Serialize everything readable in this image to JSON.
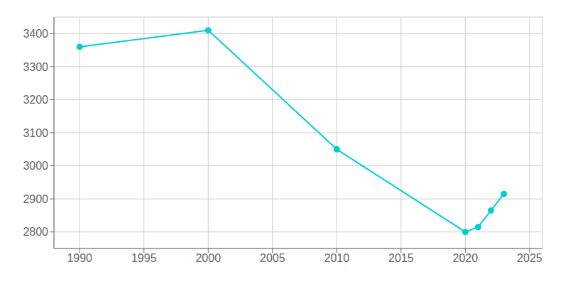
{
  "chart_data": {
    "type": "line",
    "x": [
      1990,
      2000,
      2010,
      2020,
      2021,
      2022,
      2023
    ],
    "values": [
      3360,
      3410,
      3050,
      2800,
      2815,
      2865,
      2915
    ],
    "color": "#00CED1",
    "marker": "circle",
    "xlim": [
      1988,
      2026
    ],
    "ylim": [
      2750,
      3450
    ],
    "xticks": [
      1990,
      1995,
      2000,
      2005,
      2010,
      2015,
      2020,
      2025
    ],
    "yticks": [
      2800,
      2900,
      3000,
      3100,
      3200,
      3300,
      3400
    ],
    "grid": true
  }
}
